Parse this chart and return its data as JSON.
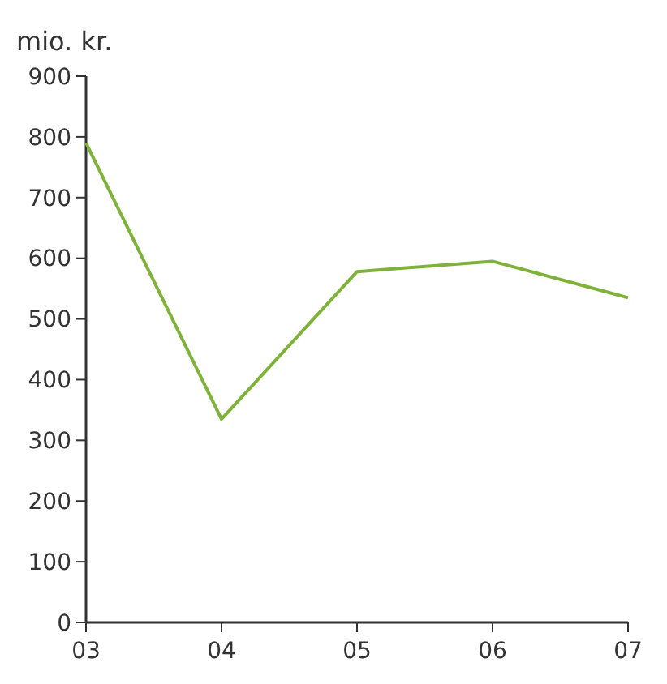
{
  "chart_data": {
    "type": "line",
    "ylabel": "mio. kr.",
    "categories": [
      "03",
      "04",
      "05",
      "06",
      "07"
    ],
    "series": [
      {
        "color": "#7fb23a",
        "values": [
          790,
          335,
          578,
          595,
          535
        ]
      }
    ],
    "ylim": [
      0,
      900
    ],
    "yticks": [
      0,
      100,
      200,
      300,
      400,
      500,
      600,
      700,
      800,
      900
    ]
  }
}
